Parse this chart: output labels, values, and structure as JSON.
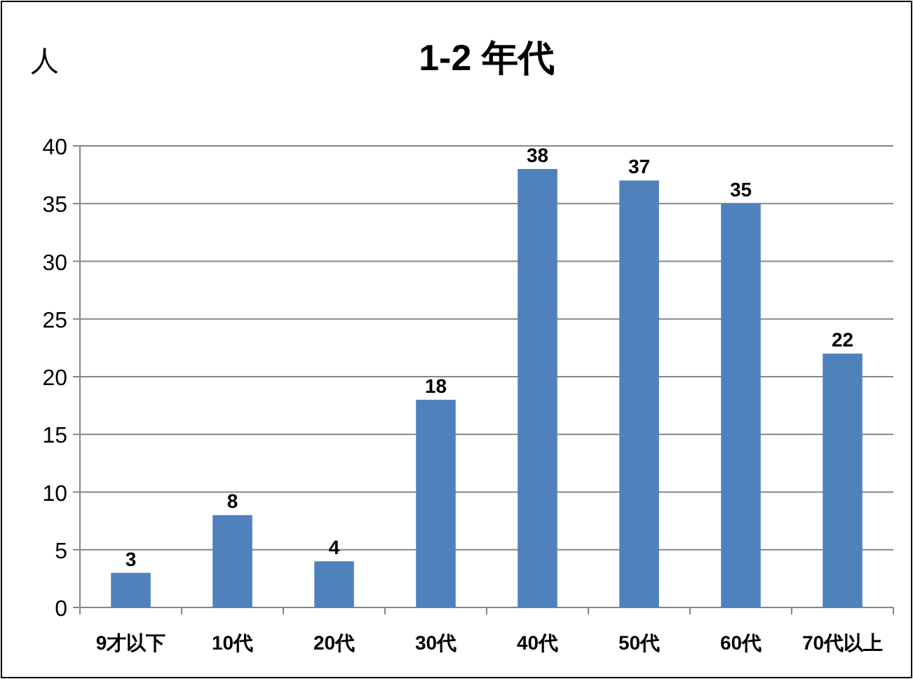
{
  "chart_data": {
    "type": "bar",
    "title": "1-2 年代",
    "ylabel": "人",
    "categories": [
      "9才以下",
      "10代",
      "20代",
      "30代",
      "40代",
      "50代",
      "60代",
      "70代以上"
    ],
    "values": [
      3,
      8,
      4,
      18,
      38,
      37,
      35,
      22
    ],
    "color": "#4f81bd",
    "ylim": [
      0,
      40
    ],
    "yticks": [
      0,
      5,
      10,
      15,
      20,
      25,
      30,
      35,
      40
    ],
    "grid": "y",
    "data_labels": true
  }
}
